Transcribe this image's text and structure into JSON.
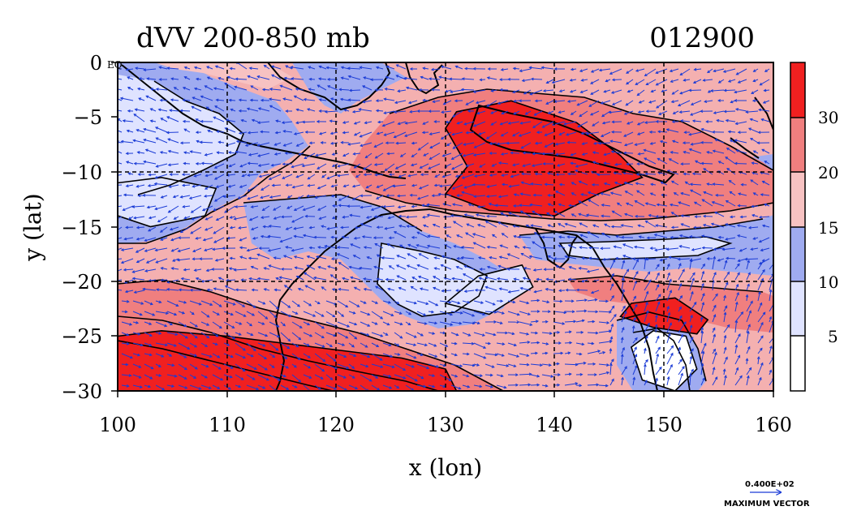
{
  "chart_data": {
    "type": "heatmap",
    "title": "dVV 200-850 mb",
    "date_label": "012900",
    "xlabel": "x (lon)",
    "ylabel": "y (lat)",
    "xlim": [
      100,
      160
    ],
    "ylim": [
      -30,
      0
    ],
    "x_ticks": [
      "100",
      "110",
      "120",
      "130",
      "140",
      "150",
      "160"
    ],
    "y_ticks": [
      "0",
      "−5",
      "−10",
      "−15",
      "−20",
      "−25",
      "−30"
    ],
    "grid": true,
    "corner_label": "EQ",
    "colorbar": {
      "levels": [
        "5",
        "10",
        "15",
        "20",
        "30"
      ],
      "colors": [
        "#ffffff",
        "#dfe3ff",
        "#9fabf0",
        "#f7c2c2",
        "#f07f7f",
        "#f02020"
      ]
    },
    "vector_legend": {
      "value": "0.400E+02",
      "label": "MAXIMUM VECTOR"
    },
    "regions": [
      {
        "level": 5,
        "name": "deep red band south-west",
        "pts": [
          [
            100,
            -25
          ],
          [
            104,
            -24.5
          ],
          [
            110,
            -25
          ],
          [
            118,
            -26
          ],
          [
            126,
            -27
          ],
          [
            130,
            -28
          ],
          [
            131,
            -30
          ],
          [
            100,
            -30
          ]
        ]
      },
      {
        "level": 5,
        "name": "red core north",
        "pts": [
          [
            131,
            -4.5
          ],
          [
            136,
            -3.5
          ],
          [
            142,
            -5.5
          ],
          [
            146,
            -8.5
          ],
          [
            148,
            -10.5
          ],
          [
            144,
            -12
          ],
          [
            140,
            -14
          ],
          [
            134,
            -13.5
          ],
          [
            130,
            -12
          ],
          [
            132,
            -9.5
          ],
          [
            130,
            -6
          ]
        ]
      },
      {
        "level": 5,
        "name": "red core south-east",
        "pts": [
          [
            147,
            -22
          ],
          [
            151,
            -21.5
          ],
          [
            154,
            -23.5
          ],
          [
            153,
            -24.8
          ],
          [
            149,
            -24.2
          ],
          [
            146,
            -23.2
          ]
        ]
      },
      {
        "level": 1,
        "name": "white patch west",
        "pts": [
          [
            100,
            -11
          ],
          [
            104,
            -10.5
          ],
          [
            109,
            -11.5
          ],
          [
            108,
            -14
          ],
          [
            103,
            -15
          ],
          [
            100,
            -14
          ]
        ]
      },
      {
        "level": 1,
        "name": "white patch central",
        "pts": [
          [
            133,
            -19.5
          ],
          [
            137,
            -18.5
          ],
          [
            138,
            -20.5
          ],
          [
            134,
            -23
          ],
          [
            130,
            -22
          ]
        ]
      },
      {
        "level": 0,
        "name": "white patch south-east",
        "pts": [
          [
            149,
            -24.5
          ],
          [
            152,
            -25
          ],
          [
            153,
            -28
          ],
          [
            151,
            -30
          ],
          [
            148,
            -29
          ],
          [
            147,
            -26
          ]
        ]
      }
    ]
  }
}
